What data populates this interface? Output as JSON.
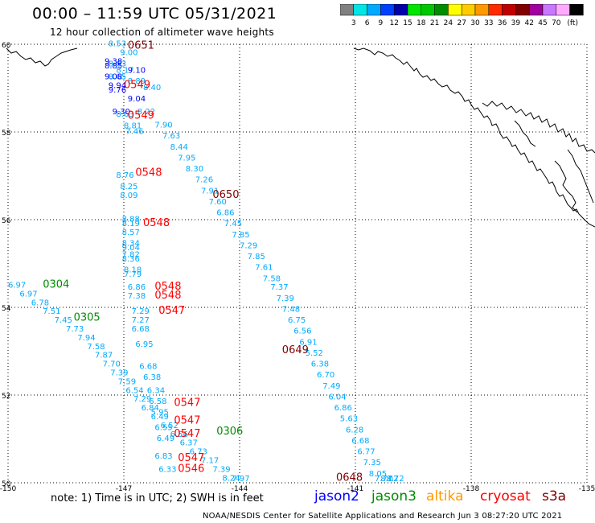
{
  "header": {
    "title": "00:00 – 11:59 UTC 05/31/2021",
    "subtitle": "12 hour collection of altimeter wave heights"
  },
  "colorbar": {
    "unit_label": "(ft)",
    "bins": [
      {
        "color": "#808080",
        "label": ""
      },
      {
        "color": "#00e6e6",
        "label": "3"
      },
      {
        "color": "#00aaff",
        "label": "6"
      },
      {
        "color": "#0040ff",
        "label": "9"
      },
      {
        "color": "#0000aa",
        "label": "12"
      },
      {
        "color": "#00e600",
        "label": "15"
      },
      {
        "color": "#00c800",
        "label": "18"
      },
      {
        "color": "#008c00",
        "label": "21"
      },
      {
        "color": "#ffff00",
        "label": "24"
      },
      {
        "color": "#ffcc00",
        "label": "27"
      },
      {
        "color": "#ff9900",
        "label": "30"
      },
      {
        "color": "#ff2a00",
        "label": "33"
      },
      {
        "color": "#c00000",
        "label": "36"
      },
      {
        "color": "#800000",
        "label": "39"
      },
      {
        "color": "#a000a0",
        "label": "42"
      },
      {
        "color": "#c878ff",
        "label": "45"
      },
      {
        "color": "#ffaaff",
        "label": "70"
      },
      {
        "color": "#000000",
        "label": ""
      }
    ]
  },
  "map": {
    "lon_range": [
      -150,
      -135
    ],
    "lat_range": [
      50,
      60
    ],
    "lat_ticks": [
      "50",
      "52",
      "54",
      "56",
      "58",
      "60"
    ],
    "lon_ticks": [
      "-150",
      "-147",
      "-144",
      "-141",
      "-138",
      "-135"
    ],
    "colors": {
      "cyan": "#00aaff",
      "blue": "#0000ff",
      "purple": "#aa00aa",
      "red": "#ff0000",
      "darkred": "#800000",
      "green": "#008c00"
    },
    "time_labels": [
      {
        "text": "0651",
        "lon": -146.9,
        "lat": 59.9,
        "color": "#800000"
      },
      {
        "text": "0549",
        "lon": -147.0,
        "lat": 59.0,
        "color": "#ff0000"
      },
      {
        "text": "0549",
        "lon": -146.9,
        "lat": 58.3,
        "color": "#ff0000"
      },
      {
        "text": "0548",
        "lon": -146.7,
        "lat": 57.0,
        "color": "#ff0000"
      },
      {
        "text": "0650",
        "lon": -144.7,
        "lat": 56.5,
        "color": "#800000"
      },
      {
        "text": "0548",
        "lon": -146.5,
        "lat": 55.85,
        "color": "#ff0000"
      },
      {
        "text": "0304",
        "lon": -149.1,
        "lat": 54.45,
        "color": "#008c00"
      },
      {
        "text": "0548",
        "lon": -146.2,
        "lat": 54.4,
        "color": "#ff0000"
      },
      {
        "text": "0548",
        "lon": -146.2,
        "lat": 54.2,
        "color": "#ff0000"
      },
      {
        "text": "0547",
        "lon": -146.1,
        "lat": 53.85,
        "color": "#ff0000"
      },
      {
        "text": "0305",
        "lon": -148.3,
        "lat": 53.7,
        "color": "#008c00"
      },
      {
        "text": "0649",
        "lon": -142.9,
        "lat": 52.95,
        "color": "#800000"
      },
      {
        "text": "0547",
        "lon": -145.7,
        "lat": 51.75,
        "color": "#ff0000"
      },
      {
        "text": "0547",
        "lon": -145.7,
        "lat": 51.35,
        "color": "#ff0000"
      },
      {
        "text": "0547",
        "lon": -145.7,
        "lat": 51.05,
        "color": "#ff0000"
      },
      {
        "text": "0306",
        "lon": -144.6,
        "lat": 51.1,
        "color": "#008c00"
      },
      {
        "text": "0547",
        "lon": -145.6,
        "lat": 50.5,
        "color": "#ff0000"
      },
      {
        "text": "0546",
        "lon": -145.6,
        "lat": 50.25,
        "color": "#ff0000"
      },
      {
        "text": "0648",
        "lon": -141.5,
        "lat": 50.05,
        "color": "#800000"
      }
    ],
    "tracks": [
      {
        "color": "#00aaff",
        "points": [
          {
            "lon": -147.4,
            "lat": 59.95,
            "text": "8.53"
          },
          {
            "lon": -147.1,
            "lat": 59.75,
            "text": "9.00"
          },
          {
            "lon": -147.4,
            "lat": 59.5,
            "text": "8.83"
          },
          {
            "lon": -147.2,
            "lat": 59.35,
            "text": "8.17"
          },
          {
            "lon": -147.4,
            "lat": 59.2,
            "text": "8.65"
          },
          {
            "lon": -146.9,
            "lat": 59.1,
            "text": "8.89"
          },
          {
            "lon": -146.5,
            "lat": 58.95,
            "text": "8.40"
          },
          {
            "lon": -146.65,
            "lat": 58.4,
            "text": "8.22"
          },
          {
            "lon": -147.2,
            "lat": 58.35,
            "text": "8.63"
          },
          {
            "lon": -147.0,
            "lat": 58.08,
            "text": "8.81"
          },
          {
            "lon": -146.95,
            "lat": 57.95,
            "text": "7.46"
          },
          {
            "lon": -146.2,
            "lat": 58.1,
            "text": "7.90"
          },
          {
            "lon": -146.0,
            "lat": 57.85,
            "text": "7.63"
          },
          {
            "lon": -145.8,
            "lat": 57.6,
            "text": "8.44"
          },
          {
            "lon": -145.6,
            "lat": 57.35,
            "text": "7.95"
          },
          {
            "lon": -145.4,
            "lat": 57.1,
            "text": "8.30"
          },
          {
            "lon": -145.15,
            "lat": 56.85,
            "text": "7.26"
          },
          {
            "lon": -145.0,
            "lat": 56.6,
            "text": "7.91"
          },
          {
            "lon": -144.8,
            "lat": 56.35,
            "text": "7.60"
          },
          {
            "lon": -144.6,
            "lat": 56.1,
            "text": "6.86"
          },
          {
            "lon": -144.4,
            "lat": 55.85,
            "text": "7.45"
          },
          {
            "lon": -144.2,
            "lat": 55.6,
            "text": "7.85"
          },
          {
            "lon": -144.0,
            "lat": 55.35,
            "text": "7.29"
          },
          {
            "lon": -143.8,
            "lat": 55.1,
            "text": "7.85"
          },
          {
            "lon": -143.6,
            "lat": 54.85,
            "text": "7.61"
          },
          {
            "lon": -143.4,
            "lat": 54.6,
            "text": "7.58"
          },
          {
            "lon": -143.2,
            "lat": 54.4,
            "text": "7.37"
          },
          {
            "lon": -143.05,
            "lat": 54.15,
            "text": "7.39"
          },
          {
            "lon": -142.9,
            "lat": 53.9,
            "text": "7.48"
          },
          {
            "lon": -142.75,
            "lat": 53.65,
            "text": "6.75"
          },
          {
            "lon": -142.6,
            "lat": 53.4,
            "text": "6.56"
          },
          {
            "lon": -142.45,
            "lat": 53.15,
            "text": "6.91"
          },
          {
            "lon": -142.3,
            "lat": 52.9,
            "text": "5.52"
          },
          {
            "lon": -142.15,
            "lat": 52.65,
            "text": "6.38"
          },
          {
            "lon": -142.0,
            "lat": 52.4,
            "text": "6.70"
          },
          {
            "lon": -141.85,
            "lat": 52.15,
            "text": "7.49"
          },
          {
            "lon": -141.7,
            "lat": 51.9,
            "text": "6.04"
          },
          {
            "lon": -141.55,
            "lat": 51.65,
            "text": "6.86"
          },
          {
            "lon": -141.4,
            "lat": 51.4,
            "text": "5.63"
          },
          {
            "lon": -141.25,
            "lat": 51.15,
            "text": "6.28"
          },
          {
            "lon": -141.1,
            "lat": 50.9,
            "text": "6.68"
          },
          {
            "lon": -140.95,
            "lat": 50.65,
            "text": "6.77"
          },
          {
            "lon": -140.8,
            "lat": 50.4,
            "text": "7.35"
          },
          {
            "lon": -140.65,
            "lat": 50.15,
            "text": "8.05"
          },
          {
            "lon": -140.5,
            "lat": 49.9,
            "text": "7.77"
          },
          {
            "lon": -140.35,
            "lat": 49.65,
            "text": "8.02"
          },
          {
            "lon": -140.2,
            "lat": 49.4,
            "text": "8.72"
          }
        ]
      },
      {
        "color": "#00aaff",
        "points": [
          {
            "lon": -147.2,
            "lat": 56.95,
            "text": "8.76"
          },
          {
            "lon": -147.1,
            "lat": 56.7,
            "text": "8.25"
          },
          {
            "lon": -147.1,
            "lat": 56.5,
            "text": "8.09"
          },
          {
            "lon": -147.05,
            "lat": 55.95,
            "text": "8.88"
          },
          {
            "lon": -147.05,
            "lat": 55.85,
            "text": "8.19"
          },
          {
            "lon": -147.05,
            "lat": 55.65,
            "text": "8.57"
          },
          {
            "lon": -147.05,
            "lat": 55.4,
            "text": "8.34"
          },
          {
            "lon": -147.05,
            "lat": 55.3,
            "text": "9.04"
          },
          {
            "lon": -147.05,
            "lat": 55.15,
            "text": "7.82"
          },
          {
            "lon": -147.05,
            "lat": 55.05,
            "text": "8.36"
          },
          {
            "lon": -147.0,
            "lat": 54.8,
            "text": "8.18"
          },
          {
            "lon": -147.0,
            "lat": 54.7,
            "text": "7.79"
          },
          {
            "lon": -146.9,
            "lat": 54.4,
            "text": "6.86"
          },
          {
            "lon": -146.9,
            "lat": 54.2,
            "text": "7.38"
          },
          {
            "lon": -146.8,
            "lat": 53.85,
            "text": "7.29"
          },
          {
            "lon": -146.8,
            "lat": 53.65,
            "text": "7.27"
          },
          {
            "lon": -146.8,
            "lat": 53.45,
            "text": "6.68"
          },
          {
            "lon": -146.7,
            "lat": 53.1,
            "text": "6.95"
          },
          {
            "lon": -146.6,
            "lat": 52.6,
            "text": "6.68"
          },
          {
            "lon": -146.5,
            "lat": 52.35,
            "text": "6.38"
          },
          {
            "lon": -146.4,
            "lat": 52.05,
            "text": "6.34"
          },
          {
            "lon": -146.35,
            "lat": 51.8,
            "text": "6.58"
          },
          {
            "lon": -146.3,
            "lat": 51.55,
            "text": "5.95"
          },
          {
            "lon": -146.2,
            "lat": 51.2,
            "text": "6.55"
          },
          {
            "lon": -146.15,
            "lat": 50.95,
            "text": "6.49"
          },
          {
            "lon": -146.2,
            "lat": 50.55,
            "text": "6.83"
          },
          {
            "lon": -146.1,
            "lat": 50.25,
            "text": "6.33"
          }
        ]
      },
      {
        "color": "#00aaff",
        "points": [
          {
            "lon": -150.0,
            "lat": 54.45,
            "text": "6.97"
          },
          {
            "lon": -149.7,
            "lat": 54.25,
            "text": "6.97"
          },
          {
            "lon": -149.4,
            "lat": 54.05,
            "text": "6.78"
          },
          {
            "lon": -149.1,
            "lat": 53.85,
            "text": "7.51"
          },
          {
            "lon": -148.8,
            "lat": 53.65,
            "text": "7.45"
          },
          {
            "lon": -148.5,
            "lat": 53.45,
            "text": "7.73"
          },
          {
            "lon": -148.2,
            "lat": 53.25,
            "text": "7.94"
          },
          {
            "lon": -147.95,
            "lat": 53.05,
            "text": "7.58"
          },
          {
            "lon": -147.75,
            "lat": 52.85,
            "text": "7.87"
          },
          {
            "lon": -147.55,
            "lat": 52.65,
            "text": "7.70"
          },
          {
            "lon": -147.35,
            "lat": 52.45,
            "text": "7.39"
          },
          {
            "lon": -147.15,
            "lat": 52.25,
            "text": "7.59"
          },
          {
            "lon": -146.95,
            "lat": 52.05,
            "text": "6.54"
          },
          {
            "lon": -146.75,
            "lat": 51.85,
            "text": "7.29"
          },
          {
            "lon": -146.55,
            "lat": 51.65,
            "text": "6.84"
          },
          {
            "lon": -146.3,
            "lat": 51.45,
            "text": "6.49"
          },
          {
            "lon": -146.05,
            "lat": 51.25,
            "text": "6.52"
          },
          {
            "lon": -145.8,
            "lat": 51.05,
            "text": "6.56"
          },
          {
            "lon": -145.55,
            "lat": 50.85,
            "text": "6.37"
          },
          {
            "lon": -145.3,
            "lat": 50.65,
            "text": "6.73"
          },
          {
            "lon": -145.0,
            "lat": 50.45,
            "text": "7.17"
          },
          {
            "lon": -144.7,
            "lat": 50.25,
            "text": "7.39"
          },
          {
            "lon": -144.45,
            "lat": 50.05,
            "text": "8.24"
          },
          {
            "lon": -144.2,
            "lat": 49.85,
            "text": "7.97"
          }
        ]
      },
      {
        "color": "#0000ff",
        "points": [
          {
            "lon": -147.5,
            "lat": 59.55,
            "text": "9.38"
          },
          {
            "lon": -147.5,
            "lat": 59.45,
            "text": "8.85"
          },
          {
            "lon": -146.9,
            "lat": 59.35,
            "text": "9.10"
          },
          {
            "lon": -147.5,
            "lat": 59.2,
            "text": "9.08"
          },
          {
            "lon": -147.4,
            "lat": 59.0,
            "text": "9.94"
          },
          {
            "lon": -147.4,
            "lat": 58.9,
            "text": "9.76"
          },
          {
            "lon": -146.9,
            "lat": 58.7,
            "text": "9.04"
          },
          {
            "lon": -147.3,
            "lat": 58.4,
            "text": "9.30"
          }
        ]
      }
    ]
  },
  "footer": {
    "note": "note: 1) Time is in UTC; 2) SWH is in feet",
    "legend": [
      {
        "id": "jason2",
        "label": "jason2",
        "color": "#0000ff"
      },
      {
        "id": "jason3",
        "label": "jason3",
        "color": "#008c00"
      },
      {
        "id": "altika",
        "label": "altika",
        "color": "#ff9900"
      },
      {
        "id": "cryosat",
        "label": "cryosat",
        "color": "#ff0000"
      },
      {
        "id": "s3a",
        "label": "s3a",
        "color": "#800000"
      }
    ],
    "credit": "NOAA/NESDIS Center for Satellite Applications and Research   Jun  3 08:27:20 UTC 2021"
  }
}
